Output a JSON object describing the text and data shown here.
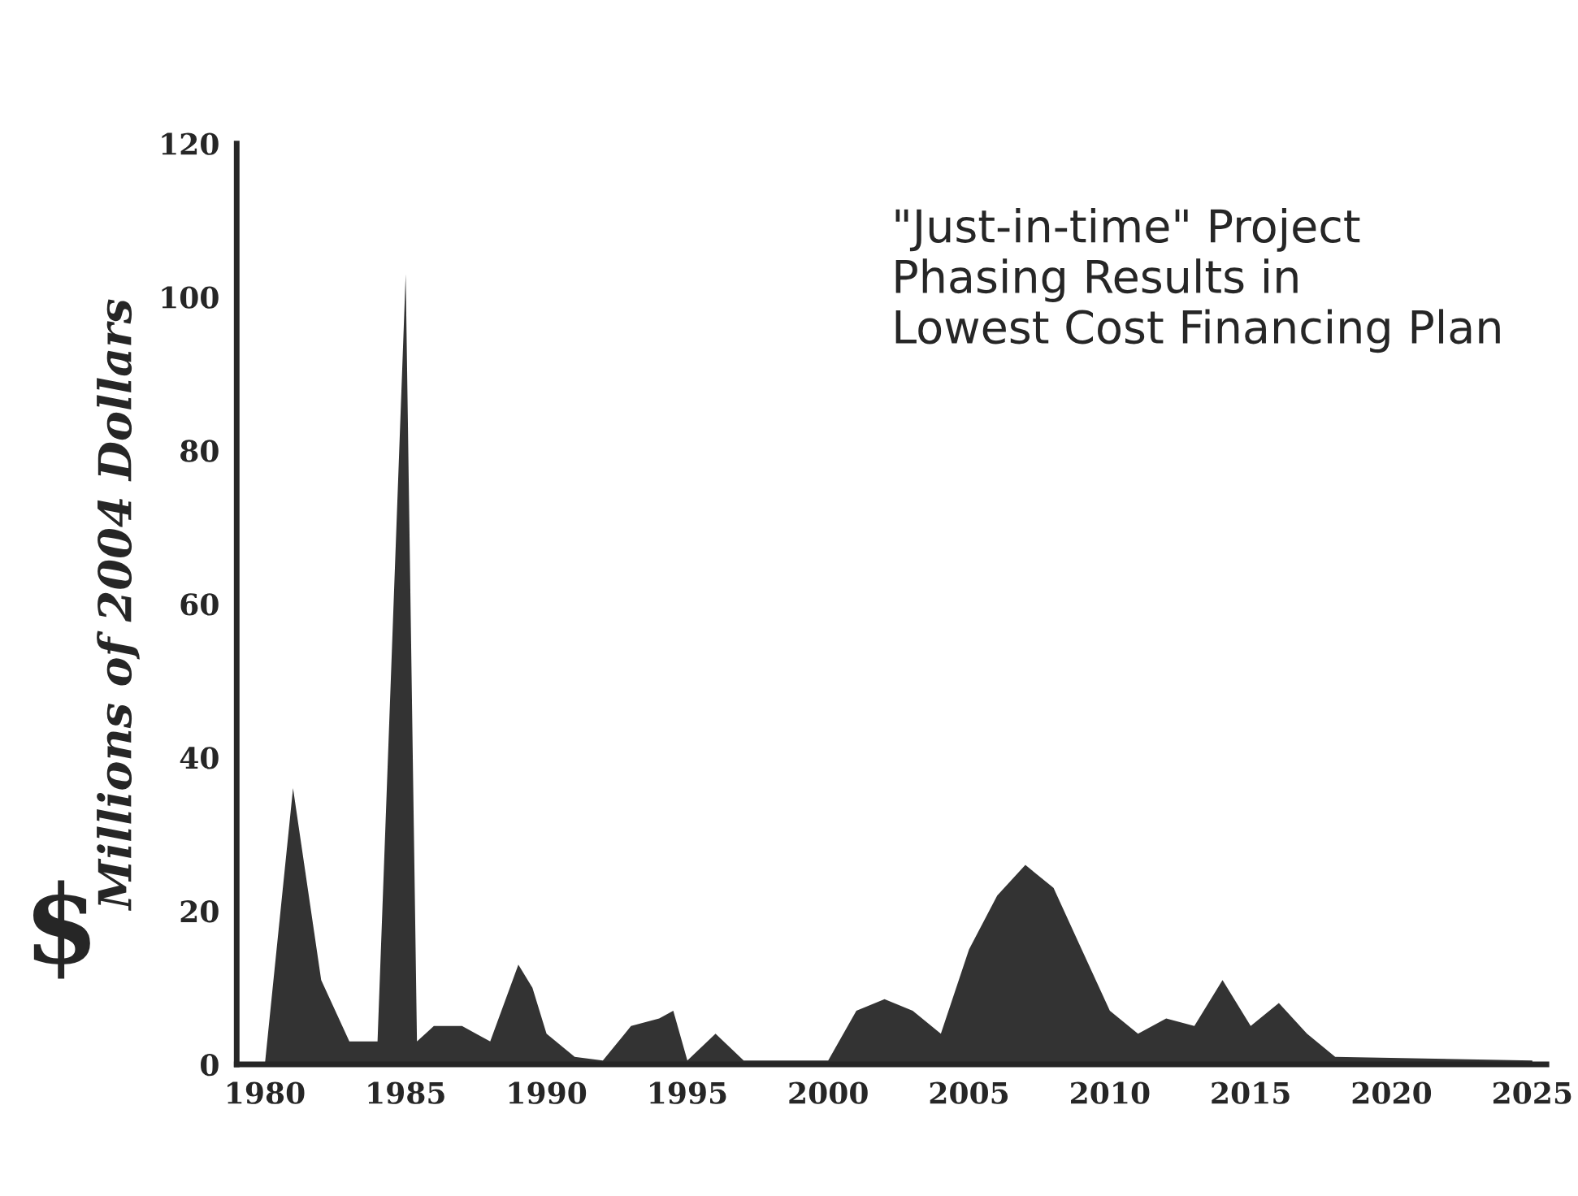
{
  "chart_data": {
    "type": "area",
    "title": "\"Just-in-time\" Project\nPhasing Results in\nLowest Cost Financing Plan",
    "ylabel": "Millions of 2004 Dollars",
    "annotations": [
      "$"
    ],
    "xlim": [
      1979,
      2025.5
    ],
    "xticks": [
      1980,
      1985,
      1990,
      1995,
      2000,
      2005,
      2010,
      2015,
      2020,
      2025
    ],
    "ylim": [
      0,
      120
    ],
    "yticks": [
      0,
      20,
      40,
      60,
      80,
      100,
      120
    ],
    "grid": false,
    "legend": false,
    "series": [
      {
        "color": "#333333",
        "x": [
          1980,
          1981,
          1982,
          1983,
          1984,
          1985,
          1985.4,
          1986,
          1987,
          1988,
          1989,
          1989.5,
          1990,
          1991,
          1992,
          1993,
          1994,
          1994.5,
          1995,
          1996,
          1997,
          2000,
          2001,
          2002,
          2003,
          2004,
          2005,
          2006,
          2007,
          2008,
          2009,
          2010,
          2011,
          2012,
          2013,
          2014,
          2015,
          2016,
          2017,
          2018,
          2025
        ],
        "values": [
          0,
          36,
          11,
          3,
          3,
          103,
          3,
          5,
          5,
          3,
          13,
          10,
          4,
          1,
          0.5,
          5,
          6,
          7,
          0.5,
          4,
          0.5,
          0.5,
          7,
          8.5,
          7,
          4,
          15,
          22,
          26,
          23,
          15,
          7,
          4,
          6,
          5,
          11,
          5,
          8,
          4,
          1,
          0.5
        ]
      }
    ]
  }
}
